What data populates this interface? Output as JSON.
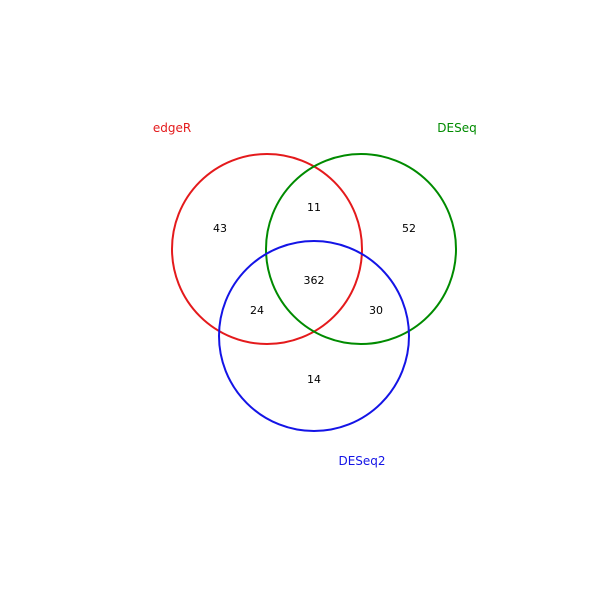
{
  "sets": [
    {
      "id": "edger",
      "label": "edgeR",
      "color": "#e41a1c"
    },
    {
      "id": "deseq",
      "label": "DESeq",
      "color": "#008b00"
    },
    {
      "id": "deseq2",
      "label": "DESeq2",
      "color": "#1414e6"
    }
  ],
  "regions": {
    "edger_only": "43",
    "deseq_only": "52",
    "deseq2_only": "14",
    "edger_deseq": "11",
    "edger_deseq2": "24",
    "deseq_deseq2": "30",
    "all_three": "362"
  }
}
